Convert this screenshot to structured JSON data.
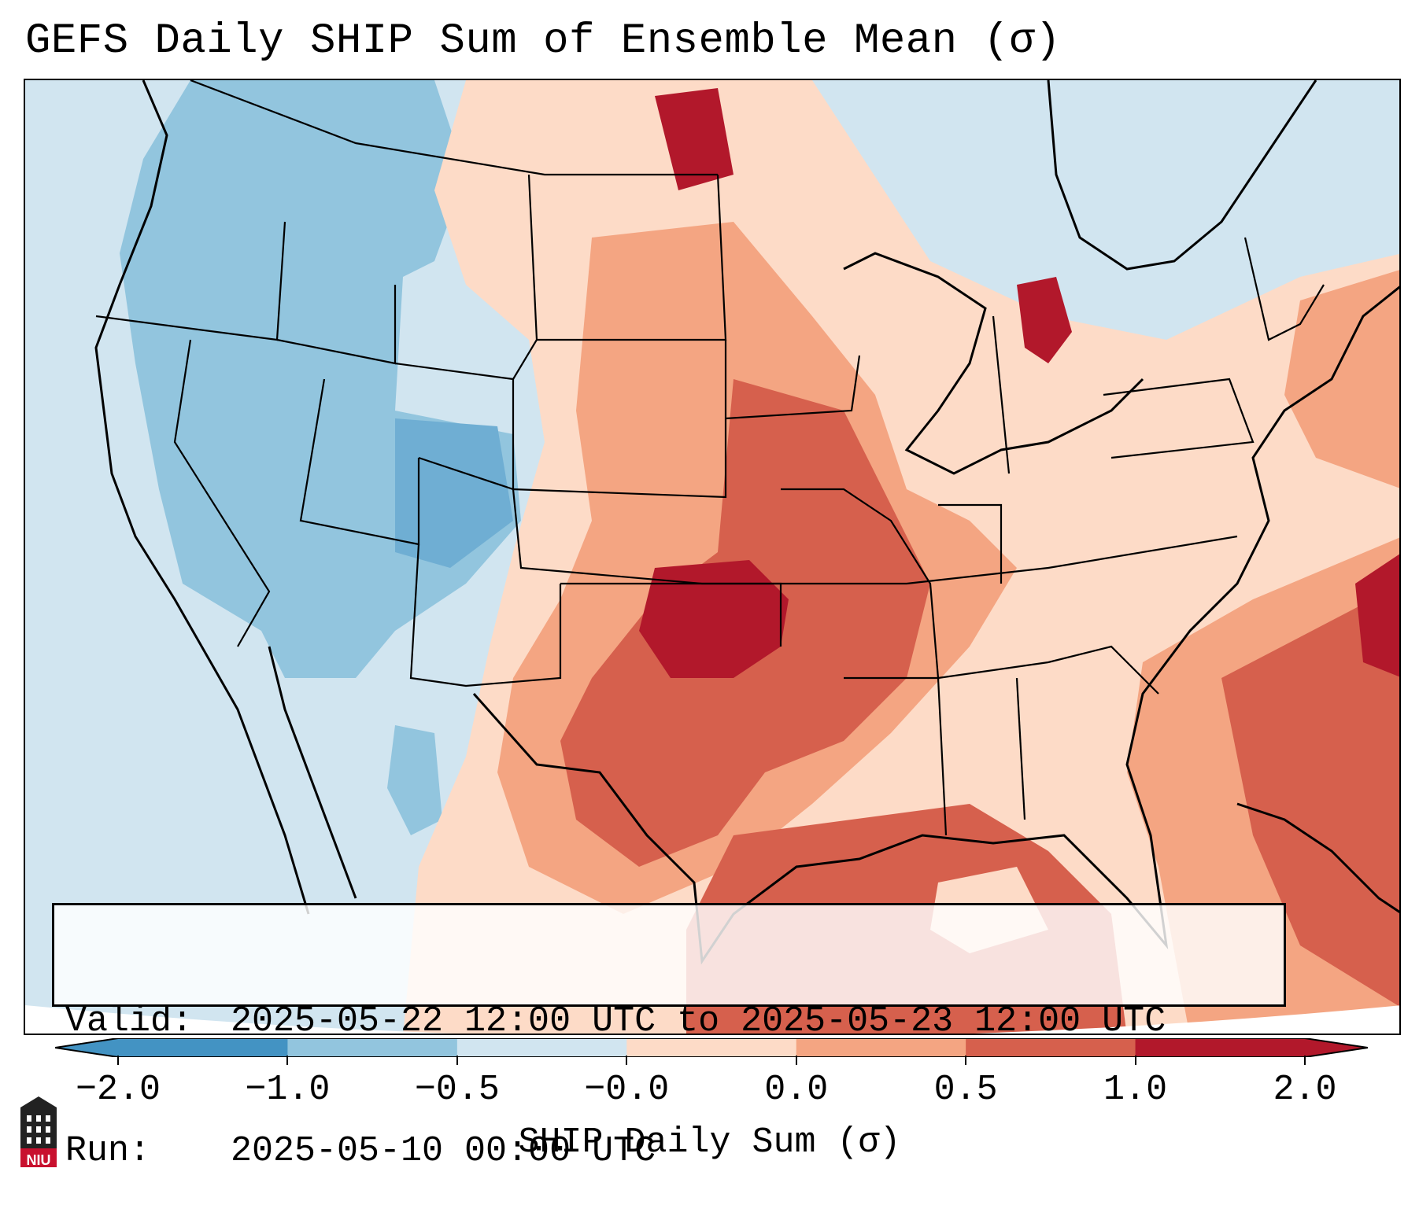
{
  "title": "GEFS Daily SHIP Sum of Ensemble Mean (σ)",
  "info": {
    "valid_label": "Valid:",
    "valid_value": "2025-05-22 12:00 UTC to 2025-05-23 12:00 UTC",
    "run_label": "Run:",
    "run_value": "2025-05-10 00:00 UTC"
  },
  "colorbar": {
    "label": "SHIP Daily Sum (σ)",
    "tick_labels": [
      "−2.0",
      "−1.0",
      "−0.5",
      "−0.0",
      "0.0",
      "0.5",
      "1.0",
      "2.0"
    ],
    "colors": [
      "#4393c3",
      "#92c5de",
      "#d1e5f0",
      "#f7f7f7",
      "#fddbc7",
      "#f4a582",
      "#d6604d",
      "#b2182b"
    ],
    "extend": "both"
  },
  "logo": {
    "text": "NIU",
    "icon": "university-tower-icon"
  }
}
